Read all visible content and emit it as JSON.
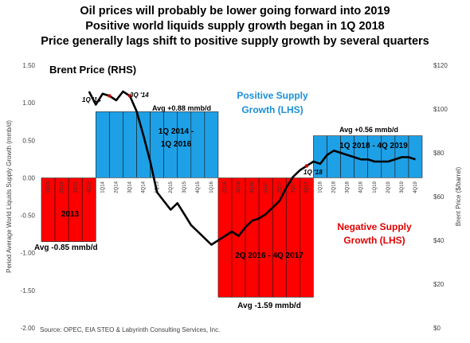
{
  "titles": [
    "Oil prices will probably be lower going forward into 2019",
    "Positive world liquids supply growth began in 1Q 2018",
    "Price generally lags shift to positive supply growth by several quarters"
  ],
  "source": "Source:  OPEC, EIA STEO & Labyrinth Consulting Services, Inc.",
  "colors": {
    "negative": "#ff0000",
    "positive": "#1ea0e6",
    "price_line": "#000000",
    "price_marker": "#c00000",
    "blue_text": "#1b8fd6",
    "red_text": "#e00000"
  },
  "chart_data": {
    "type": "bar",
    "title": "",
    "ylabel": "Period Average World Liquids Supply Growth (mmb/d)",
    "y2label": "Brent Price ($/barrel)",
    "ylim": [
      -2.0,
      1.5
    ],
    "y2lim": [
      0,
      120
    ],
    "yticks": [
      "1.50",
      "1.00",
      "0.50",
      "0.00",
      "-0.50",
      "-1.00",
      "-1.50",
      "-2.00"
    ],
    "y2ticks": [
      "$120",
      "$100",
      "$80",
      "$60",
      "$40",
      "$20",
      "$0"
    ],
    "categories": [
      "1Q13",
      "2Q13",
      "3Q13",
      "4Q13",
      "1Q14",
      "2Q14",
      "3Q14",
      "4Q14",
      "1Q15",
      "2Q15",
      "3Q15",
      "4Q15",
      "1Q16",
      "2Q16",
      "3Q16",
      "4Q16",
      "1Q17",
      "2Q17",
      "3Q17",
      "4Q17",
      "1Q18",
      "2Q18",
      "3Q18",
      "4Q18",
      "1Q19",
      "2Q19",
      "3Q19",
      "4Q19"
    ],
    "visible_category_labels": [
      "1Q13",
      "2Q13",
      "3Q13",
      "4Q13",
      "1Q14",
      "2Q14",
      "3Q14",
      "4Q14",
      "1Q15",
      "2Q15",
      "3Q15",
      "4Q15",
      "1Q16",
      "2Q16",
      "3Q16",
      "4Q16",
      "1Q17",
      "2Q17",
      "3Q17",
      "4Q17",
      "1Q18",
      "2Q18",
      "3Q18",
      "4Q18",
      "1Q19",
      "2Q19",
      "3Q19",
      "4Q19"
    ],
    "series": [
      {
        "name": "Supply Growth (LHS)",
        "axis": "left",
        "type": "bar",
        "values": [
          -0.85,
          -0.85,
          -0.85,
          -0.85,
          0.88,
          0.88,
          0.88,
          0.88,
          0.88,
          0.88,
          0.88,
          0.88,
          0.88,
          -1.59,
          -1.59,
          -1.59,
          -1.59,
          -1.59,
          -1.59,
          -1.59,
          0.56,
          0.56,
          0.56,
          0.56,
          0.56,
          0.56,
          0.56,
          0.56
        ]
      },
      {
        "name": "Brent Price (RHS)",
        "axis": "right",
        "type": "line",
        "x": [
          3.5,
          4.0,
          4.5,
          5.0,
          5.5,
          6.0,
          6.5,
          7.0,
          7.5,
          8.0,
          8.5,
          9.0,
          9.5,
          10.0,
          10.5,
          11.0,
          11.5,
          12.0,
          12.5,
          13.0,
          13.5,
          14.0,
          14.5,
          15.0,
          15.5,
          16.0,
          16.5,
          17.0,
          17.5,
          18.0,
          18.5,
          19.0,
          19.5,
          20.0,
          20.5,
          21.0,
          21.5,
          22.0,
          22.5,
          23.0,
          23.5,
          24.0,
          24.5,
          25.0,
          25.5,
          26.0,
          26.5,
          27.0,
          27.5
        ],
        "values": [
          108,
          102,
          107,
          106,
          104,
          108,
          106,
          99,
          88,
          76,
          62,
          58,
          54,
          57,
          52,
          47,
          44,
          41,
          38,
          40,
          42,
          44,
          42,
          46,
          49,
          50,
          52,
          55,
          58,
          64,
          69,
          72,
          74,
          76,
          75,
          79,
          81,
          80,
          79,
          78,
          77,
          77,
          76,
          76,
          76,
          77,
          78,
          78,
          77
        ]
      }
    ],
    "annotations": [
      {
        "text": "Brent Price (RHS)"
      },
      {
        "text": "1Q '14"
      },
      {
        "text": "3Q '14"
      },
      {
        "text": "1Q '18"
      },
      {
        "text": "Avg +0.88 mmb/d"
      },
      {
        "text": "Positive Supply"
      },
      {
        "text": "Growth (LHS)"
      },
      {
        "text": "1Q 2014 -"
      },
      {
        "text": "1Q 2016"
      },
      {
        "text": "2013"
      },
      {
        "text": "Avg -0.85 mmb/d"
      },
      {
        "text": "2Q 2016 - 4Q 2017"
      },
      {
        "text": "Avg -1.59 mmb/d"
      },
      {
        "text": "Negative Supply"
      },
      {
        "text": "Growth (LHS)"
      },
      {
        "text": "Avg +0.56 mmb/d"
      },
      {
        "text": "1Q 2018 - 4Q 2019"
      }
    ]
  }
}
